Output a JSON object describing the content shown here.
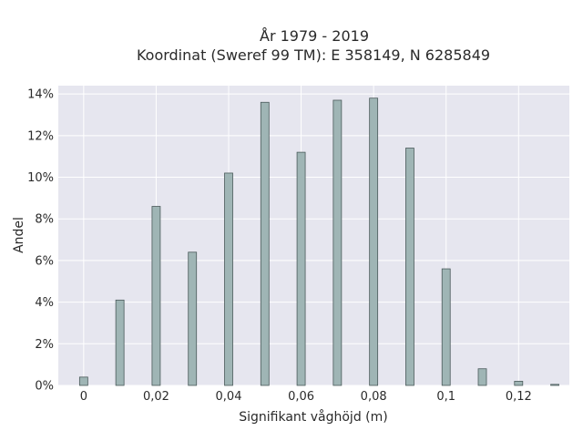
{
  "chart_data": {
    "type": "bar",
    "title_line1": "År 1979 - 2019",
    "title_line2": "Koordinat (Sweref 99 TM): E 358149, N 6285849",
    "xlabel": "Signifikant våghöjd (m)",
    "ylabel": "Andel",
    "x_ticks": [
      {
        "value": 0,
        "label": "0"
      },
      {
        "value": 0.02,
        "label": "0,02"
      },
      {
        "value": 0.04,
        "label": "0,04"
      },
      {
        "value": 0.06,
        "label": "0,06"
      },
      {
        "value": 0.08,
        "label": "0,08"
      },
      {
        "value": 0.1,
        "label": "0,1"
      },
      {
        "value": 0.12,
        "label": "0,12"
      }
    ],
    "y_ticks": [
      {
        "value": 0,
        "label": "0%"
      },
      {
        "value": 2,
        "label": "2%"
      },
      {
        "value": 4,
        "label": "4%"
      },
      {
        "value": 6,
        "label": "6%"
      },
      {
        "value": 8,
        "label": "8%"
      },
      {
        "value": 10,
        "label": "10%"
      },
      {
        "value": 12,
        "label": "12%"
      },
      {
        "value": 14,
        "label": "14%"
      }
    ],
    "x": [
      0,
      0.01,
      0.02,
      0.03,
      0.04,
      0.05,
      0.06,
      0.07,
      0.08,
      0.09,
      0.1,
      0.11,
      0.12,
      0.13
    ],
    "values": [
      0.4,
      4.1,
      8.6,
      6.4,
      10.2,
      13.6,
      11.2,
      13.7,
      13.8,
      11.4,
      5.6,
      0.8,
      0.2,
      0.05
    ],
    "xlim": [
      -0.007,
      0.134
    ],
    "ylim": [
      0,
      14.4
    ],
    "grid": true,
    "colors": {
      "bar_fill": "#9fb5b5",
      "bar_stroke": "#4a5a5a",
      "plot_bg": "#e6e6ef",
      "grid": "#ffffff"
    }
  }
}
